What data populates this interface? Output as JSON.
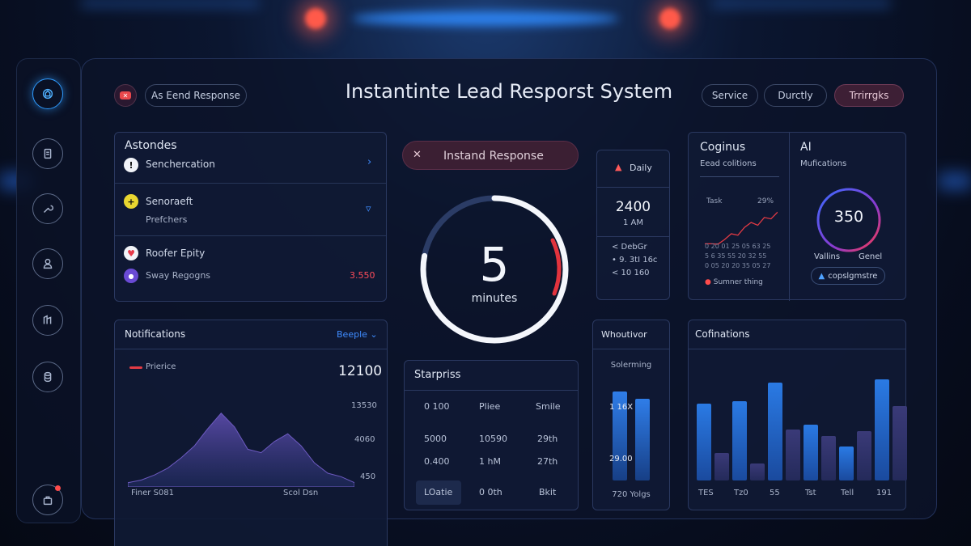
{
  "header": {
    "title": "Instantinte Lead Resporst System",
    "tab_left": "As Eend Response",
    "tabs": [
      "Service",
      "Durctly",
      "Trrirrgks"
    ]
  },
  "astondes": {
    "title": "Astondes",
    "rows": [
      {
        "label": "Senchercation"
      },
      {
        "label": "Senoraeft",
        "sub": "Prefchers"
      },
      {
        "label": "Roofer Epity",
        "sub": "Sway Regogns",
        "value": "3.550"
      }
    ]
  },
  "instant": {
    "label": "Instand Response",
    "timer_value": "5",
    "timer_unit": "minutes",
    "progress": 0.78
  },
  "daily": {
    "label": "Daily",
    "value": "2400",
    "time": "1 AM",
    "lines": [
      "< DebGr",
      "• 9. 3tI 16c",
      "< 10 160"
    ]
  },
  "cognius": {
    "title": "Coginus",
    "sub": "Eead colitions",
    "chart_label_left": "Task",
    "chart_label_right": "29%",
    "chart_note": "Sumner thing",
    "grid_numbers": [
      "0 20 01 25 05 63 25",
      "5 6 35 55 20 32 55",
      "0 05 20 20 35 05 27"
    ],
    "ai_title": "AI",
    "ai_sub": "Mufications",
    "ring_value": "350",
    "ring_left": "Vallins",
    "ring_right": "Genel",
    "ring_button": "copslgmstre"
  },
  "notifications": {
    "title": "Notifications",
    "dropdown": "Beeple",
    "legend": "Prierice",
    "big_value": "12100",
    "y_labels": [
      "13530",
      "4060",
      "450"
    ],
    "x_labels": [
      "Finer S081",
      "Scol Dsn"
    ]
  },
  "table": {
    "title": "Starpriss",
    "rows": [
      [
        "0 100",
        "Pliee",
        "Smile"
      ],
      [
        "5000",
        "10590",
        "29th"
      ],
      [
        "0.400",
        "1 hM",
        "27th"
      ],
      [
        "LOatie",
        "0 0th",
        "Bkit"
      ]
    ]
  },
  "without": {
    "title": "Whoutivor",
    "sub": "Solerming",
    "label_top": "1 16X",
    "label_bottom": "29.00",
    "footer": "720 Yolgs",
    "bars": [
      0.85,
      0.78
    ]
  },
  "cofin": {
    "title": "Cofinations",
    "x_labels": [
      "TES",
      "Tz0",
      "55",
      "Tst",
      "Tell",
      "191"
    ],
    "bars": [
      [
        0.72,
        0.26
      ],
      [
        0.74,
        0.16
      ],
      [
        0.92,
        0.48
      ],
      [
        0.52,
        0.42
      ],
      [
        0.32,
        0.46
      ],
      [
        0.95,
        0.7
      ]
    ]
  },
  "area_chart": [
    0.05,
    0.08,
    0.14,
    0.22,
    0.34,
    0.48,
    0.68,
    0.86,
    0.7,
    0.44,
    0.4,
    0.53,
    0.62,
    0.48,
    0.28,
    0.16,
    0.12,
    0.05
  ],
  "line_chart": [
    0.06,
    0.06,
    0.05,
    0.18,
    0.34,
    0.3,
    0.52,
    0.66,
    0.58,
    0.8,
    0.76,
    0.95
  ]
}
